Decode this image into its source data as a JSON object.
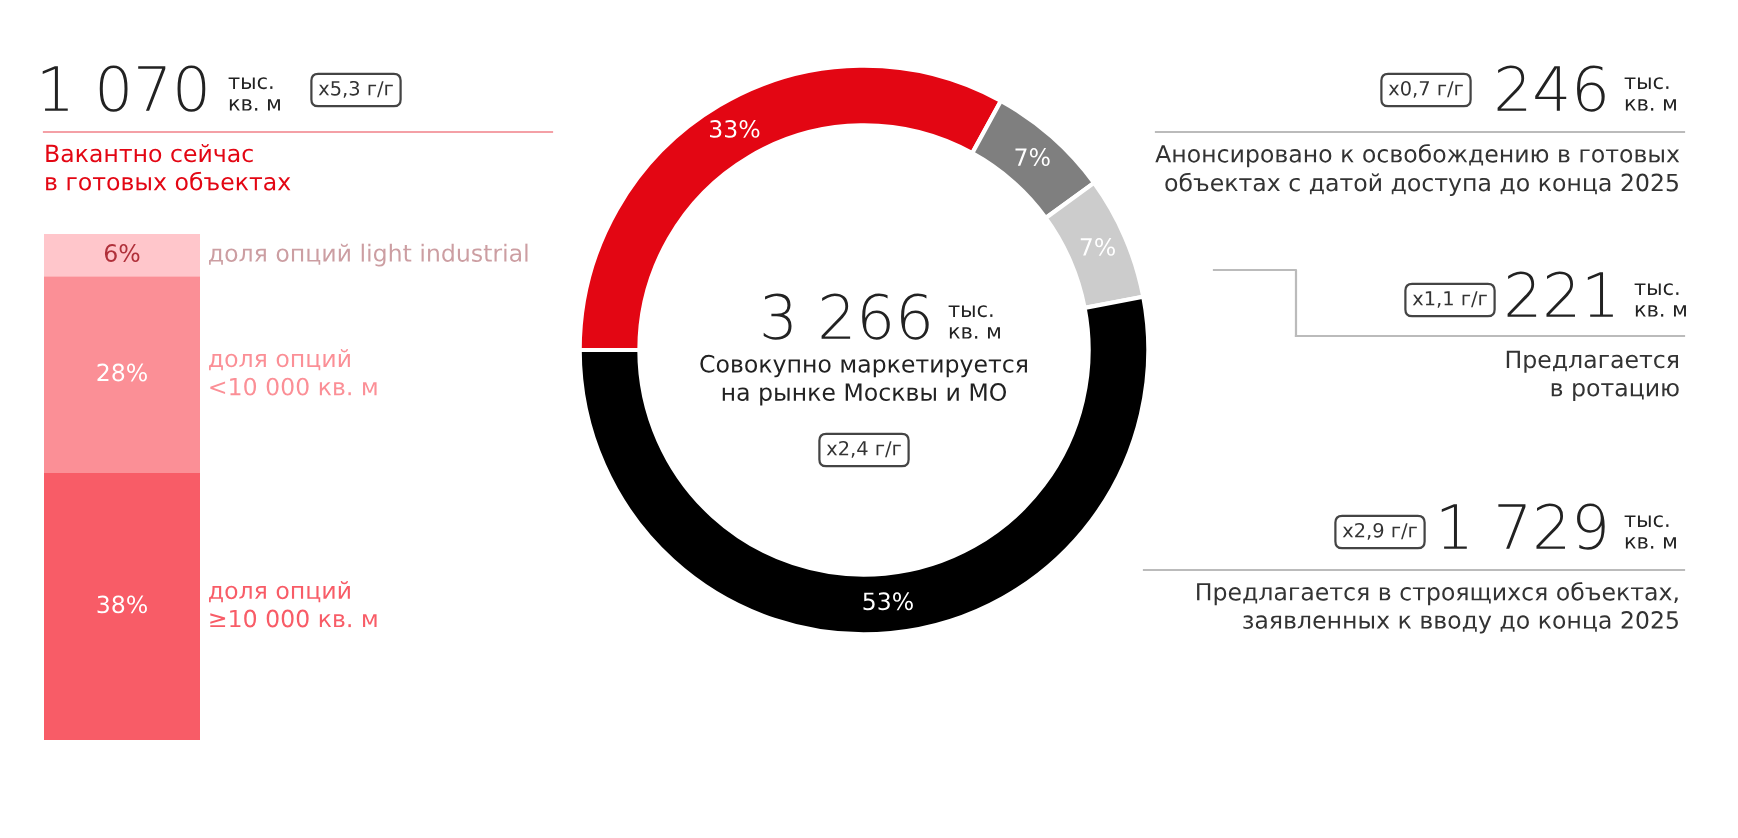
{
  "chart_data": [
    {
      "type": "donut",
      "categories": [
        null,
        null,
        null,
        null
      ],
      "values": [
        33,
        7,
        7,
        53
      ],
      "value_labels": [
        "33%",
        "7%",
        "7%",
        "53%"
      ],
      "colors": [
        "#e30613",
        "#7f7f7f",
        "#cccccc",
        "#000000"
      ],
      "annotations": [
        "1 070",
        "тыс.\nкв. м",
        "x5,3 г/г",
        "246",
        "тыс.\nкв. м",
        "x0,7 г/г",
        "221",
        "тыс.\nкв. м",
        "x1,1 г/г",
        "1 729",
        "тыс.\nкв. м",
        "x2,9 г/г",
        "3 266",
        "тыс.\nкв. м",
        "Совокупно маркетируется\nна рынке Москвы и МО",
        "x2,4 г/г",
        "Вакантно сейчас\nв готовых объектах",
        "Анонсировано к освобождению в готовых\nобъектах с датой доступа до конца 2025",
        "Предлагается\nв ротацию",
        "Предлагается в строящихся объектах,\nзаявленных к вводу до конца 2025"
      ]
    },
    {
      "type": "bar",
      "stacked": true,
      "categories": [
        null
      ],
      "series": [
        {
          "name": "доля опций\n≥10 000 кв. м",
          "color": "#f85c67",
          "values": [
            38
          ],
          "value_labels": [
            "38%"
          ]
        },
        {
          "name": "доля опций\n<10 000 кв. м",
          "color": "#fb8f96",
          "values": [
            28
          ],
          "value_labels": [
            "28%"
          ]
        },
        {
          "name": "доля опций light industrial",
          "color": "#ffc6cb",
          "values": [
            6
          ],
          "value_labels": [
            "6%"
          ]
        }
      ]
    }
  ]
}
